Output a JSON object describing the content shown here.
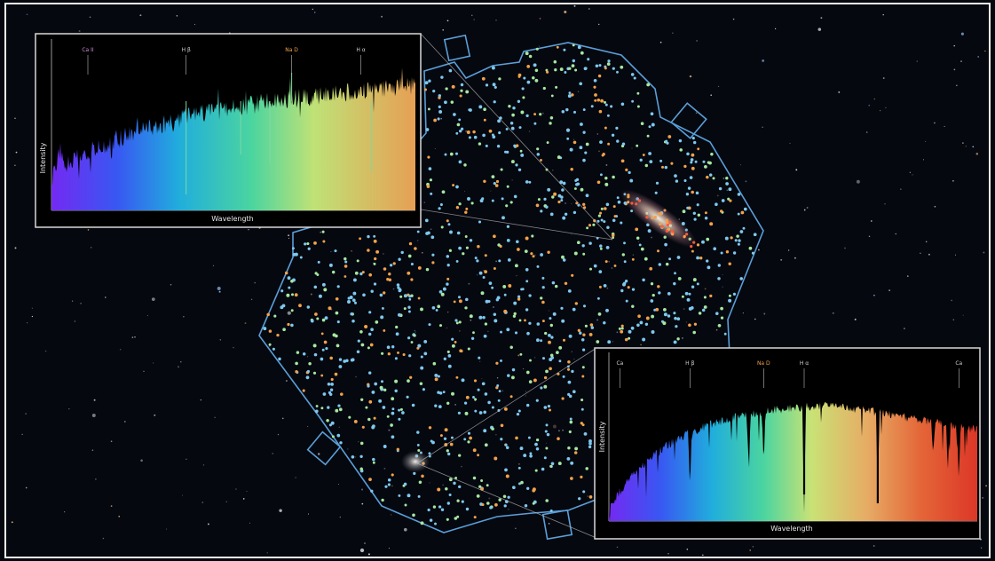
{
  "scene": {
    "description_colors": {
      "sky": "#06080f",
      "footprint_outline": "#5a9fd8",
      "dot_blue": "#7ec8ee",
      "dot_green": "#a6e8a0",
      "dot_orange": "#f2a24a"
    }
  },
  "insets": [
    {
      "id": "top-left",
      "x_label": "Wavelength",
      "y_label": "Intensity",
      "lines": [
        {
          "label": "Ca II",
          "color": "#c98bd6",
          "pos": 0.1
        },
        {
          "label": "H β",
          "color": "#cfcfcf",
          "pos": 0.37
        },
        {
          "label": "Na D",
          "color": "#f0a24a",
          "pos": 0.66
        },
        {
          "label": "H α",
          "color": "#cfcfcf",
          "pos": 0.85
        }
      ]
    },
    {
      "id": "bottom-right",
      "x_label": "Wavelength",
      "y_label": "Intensity",
      "lines": [
        {
          "label": "Ca",
          "color": "#cfcfcf",
          "pos": 0.03
        },
        {
          "label": "H β",
          "color": "#cfcfcf",
          "pos": 0.22
        },
        {
          "label": "Na D",
          "color": "#f0a24a",
          "pos": 0.42
        },
        {
          "label": "H α",
          "color": "#cfcfcf",
          "pos": 0.53
        },
        {
          "label": "Ca",
          "color": "#cfcfcf",
          "pos": 0.95
        }
      ]
    }
  ]
}
